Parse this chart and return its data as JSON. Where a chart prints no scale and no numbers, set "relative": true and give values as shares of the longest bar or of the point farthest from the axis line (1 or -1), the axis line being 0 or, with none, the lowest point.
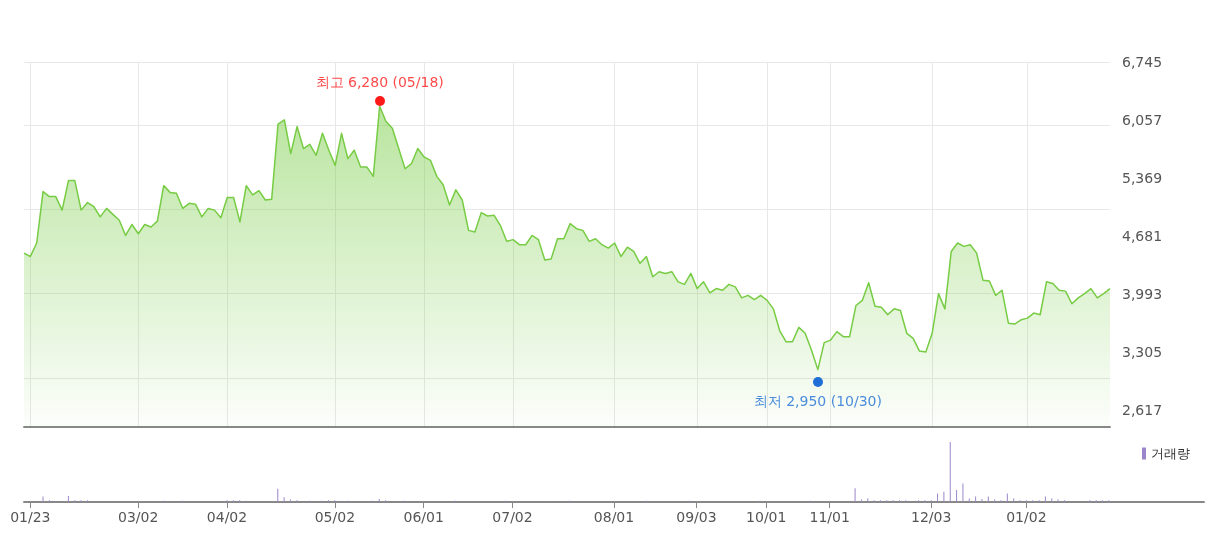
{
  "chart_data": [
    {
      "type": "area",
      "color": "#77cc44",
      "grid": true,
      "tick_labels": "y",
      "ylim": [
        2420,
        6745
      ],
      "yticks": [
        {
          "value": 2617,
          "label": "2,617"
        },
        {
          "value": 3305,
          "label": "3,305"
        },
        {
          "value": 3993,
          "label": "3,993"
        },
        {
          "value": 4681,
          "label": "4,681"
        },
        {
          "value": 5369,
          "label": "5,369"
        },
        {
          "value": 6057,
          "label": "6,057"
        },
        {
          "value": 6745,
          "label": "6,745"
        }
      ],
      "annotations": [
        {
          "text": "최고 6,280 (05/18)",
          "y": 6280
        },
        {
          "text": "최저 2,950 (10/30)",
          "y": 2950
        }
      ],
      "categories": [
        null,
        null,
        null,
        null,
        null,
        null,
        null,
        null,
        null,
        null,
        null,
        null,
        null,
        null,
        null,
        null,
        null,
        null,
        null,
        null,
        null,
        null,
        null,
        null,
        null,
        null,
        null,
        null,
        null,
        null,
        null,
        null,
        null,
        null,
        null,
        null,
        null,
        null,
        null,
        null,
        null,
        null,
        null,
        null,
        null,
        null,
        null,
        null,
        null,
        null,
        null,
        null,
        null,
        null,
        null,
        null,
        null,
        null,
        null,
        null,
        null,
        null,
        null,
        null,
        null,
        null,
        null,
        null,
        null,
        null,
        null,
        null,
        null,
        null,
        null,
        null,
        null,
        null,
        null,
        null,
        null,
        null,
        null,
        null,
        null,
        null,
        null,
        null,
        null,
        null,
        null,
        null,
        null,
        null,
        null,
        null,
        null,
        null,
        null,
        null,
        null,
        null,
        null,
        null,
        null,
        null,
        null,
        null,
        null,
        null,
        null,
        null,
        null,
        null,
        null,
        null,
        null,
        null,
        null,
        null,
        null,
        null,
        null,
        null,
        null,
        null,
        null,
        null,
        null,
        null,
        null,
        null,
        null,
        null,
        null,
        null,
        null,
        null,
        null,
        null,
        null,
        null,
        null,
        null,
        null,
        null,
        null,
        null,
        null,
        null,
        null,
        null,
        null,
        null,
        null,
        null,
        null,
        null,
        null,
        null,
        null,
        null,
        null,
        null,
        null,
        null,
        null,
        null,
        null,
        null,
        null,
        null
      ],
      "values": [
        4480,
        4440,
        4600,
        5210,
        5150,
        5150,
        4990,
        5340,
        5340,
        4990,
        5080,
        5030,
        4910,
        5010,
        4940,
        4870,
        4690,
        4820,
        4710,
        4820,
        4790,
        4860,
        5280,
        5200,
        5190,
        5010,
        5070,
        5060,
        4910,
        5010,
        4990,
        4900,
        5140,
        5140,
        4850,
        5280,
        5170,
        5220,
        5110,
        5120,
        6010,
        6060,
        5660,
        5980,
        5720,
        5770,
        5640,
        5900,
        5700,
        5520,
        5900,
        5600,
        5700,
        5500,
        5500,
        5390,
        6220,
        6040,
        5960,
        5720,
        5480,
        5540,
        5720,
        5620,
        5580,
        5390,
        5290,
        5050,
        5230,
        5110,
        4750,
        4730,
        4960,
        4920,
        4930,
        4810,
        4620,
        4640,
        4580,
        4580,
        4690,
        4640,
        4400,
        4410,
        4650,
        4650,
        4830,
        4770,
        4750,
        4620,
        4650,
        4580,
        4540,
        4600,
        4440,
        4550,
        4500,
        4360,
        4440,
        4200,
        4260,
        4240,
        4260,
        4140,
        4110,
        4240,
        4060,
        4140,
        4010,
        4060,
        4040,
        4110,
        4080,
        3950,
        3980,
        3930,
        3980,
        3920,
        3820,
        3560,
        3430,
        3430,
        3600,
        3530,
        3330,
        3100,
        3420,
        3450,
        3550,
        3490,
        3490,
        3860,
        3920,
        4130,
        3850,
        3840,
        3750,
        3820,
        3800,
        3530,
        3470,
        3320,
        3310,
        3530,
        4000,
        3820,
        4500,
        4600,
        4560,
        4580,
        4480,
        4160,
        4150,
        3980,
        4040,
        3650,
        3640,
        3690,
        3710,
        3770,
        3750,
        4140,
        4120,
        4040,
        4030,
        3880,
        3950,
        4000,
        4060,
        3950,
        4000,
        4060
      ]
    },
    {
      "type": "bar",
      "relative": true,
      "legend": "top right",
      "tick_labels": "x",
      "categories": [
        null,
        "01/23",
        null,
        null,
        null,
        null,
        null,
        null,
        null,
        null,
        null,
        null,
        null,
        null,
        null,
        null,
        null,
        null,
        "03/02",
        null,
        null,
        null,
        null,
        null,
        null,
        null,
        null,
        null,
        null,
        null,
        null,
        null,
        "04/02",
        null,
        null,
        null,
        null,
        null,
        null,
        null,
        null,
        null,
        null,
        null,
        null,
        null,
        null,
        null,
        null,
        "05/02",
        null,
        null,
        null,
        null,
        null,
        null,
        null,
        null,
        null,
        null,
        null,
        null,
        null,
        "06/01",
        null,
        null,
        null,
        null,
        null,
        null,
        null,
        null,
        null,
        null,
        null,
        null,
        null,
        "07/02",
        null,
        null,
        null,
        null,
        null,
        null,
        null,
        null,
        null,
        null,
        null,
        null,
        null,
        null,
        null,
        "08/01",
        null,
        null,
        null,
        null,
        null,
        null,
        null,
        null,
        null,
        null,
        null,
        null,
        "09/03",
        null,
        null,
        null,
        null,
        null,
        null,
        null,
        null,
        null,
        null,
        "10/01",
        null,
        null,
        null,
        null,
        null,
        null,
        null,
        null,
        null,
        "11/01",
        null,
        null,
        null,
        null,
        null,
        null,
        null,
        null,
        null,
        null,
        null,
        null,
        null,
        null,
        null,
        "12/03",
        null,
        null,
        null,
        null,
        null,
        null,
        null,
        null,
        null,
        null,
        null,
        null,
        null,
        null,
        "01/02",
        null,
        null,
        null,
        null,
        null,
        null,
        null,
        null,
        null,
        null,
        null,
        null,
        null,
        null,
        null,
        null,
        null,
        null,
        null,
        null,
        null,
        null,
        null,
        null,
        null,
        null,
        null,
        null
      ],
      "series": [
        {
          "name": "거래량",
          "color": "#9b86c9",
          "values": [
            null,
            null,
            null,
            0.09,
            0.03,
            0.01,
            null,
            0.1,
            0.03,
            0.03,
            0.03,
            null,
            null,
            null,
            null,
            null,
            null,
            null,
            null,
            null,
            null,
            null,
            0.02,
            null,
            null,
            0.02,
            null,
            null,
            null,
            null,
            null,
            null,
            0.03,
            0.03,
            0.03,
            0.02,
            null,
            null,
            null,
            null,
            0.22,
            0.08,
            0.04,
            0.03,
            null,
            0.02,
            null,
            0.02,
            0.03,
            0.03,
            0.02,
            0.02,
            null,
            null,
            null,
            0.02,
            0.05,
            0.03,
            null,
            null,
            0.02,
            null,
            null,
            null,
            null,
            null,
            null,
            null,
            0.02,
            null,
            null,
            null,
            null,
            null,
            null,
            null,
            0.02,
            null,
            null,
            null,
            null,
            null,
            0.01,
            null,
            null,
            null,
            0.02,
            null,
            null,
            null,
            null,
            null,
            null,
            null,
            null,
            null,
            null,
            null,
            0.02,
            null,
            null,
            null,
            null,
            null,
            null,
            0.02,
            null,
            null,
            null,
            null,
            null,
            null,
            null,
            null,
            null,
            null,
            0.02,
            null,
            null,
            null,
            null,
            null,
            null,
            null,
            0.02,
            null,
            null,
            null,
            null,
            null,
            null,
            0.23,
            0.04,
            0.06,
            0.03,
            0.03,
            0.03,
            0.03,
            0.03,
            0.03,
            null,
            0.03,
            0.03,
            0.03,
            0.14,
            0.17,
            1,
            0.2,
            0.31,
            0.06,
            0.09,
            0.05,
            0.09,
            0.04,
            0.03,
            0.14,
            0.06,
            0.03,
            0.03,
            0.03,
            0.03,
            0.09,
            0.06,
            0.04,
            0.03,
            null,
            null,
            null,
            0.03,
            0.03,
            0.03,
            0.03,
            null,
            null,
            null,
            null,
            null,
            null,
            null,
            null,
            null,
            null,
            null,
            null,
            null,
            null,
            null
          ]
        }
      ]
    }
  ]
}
